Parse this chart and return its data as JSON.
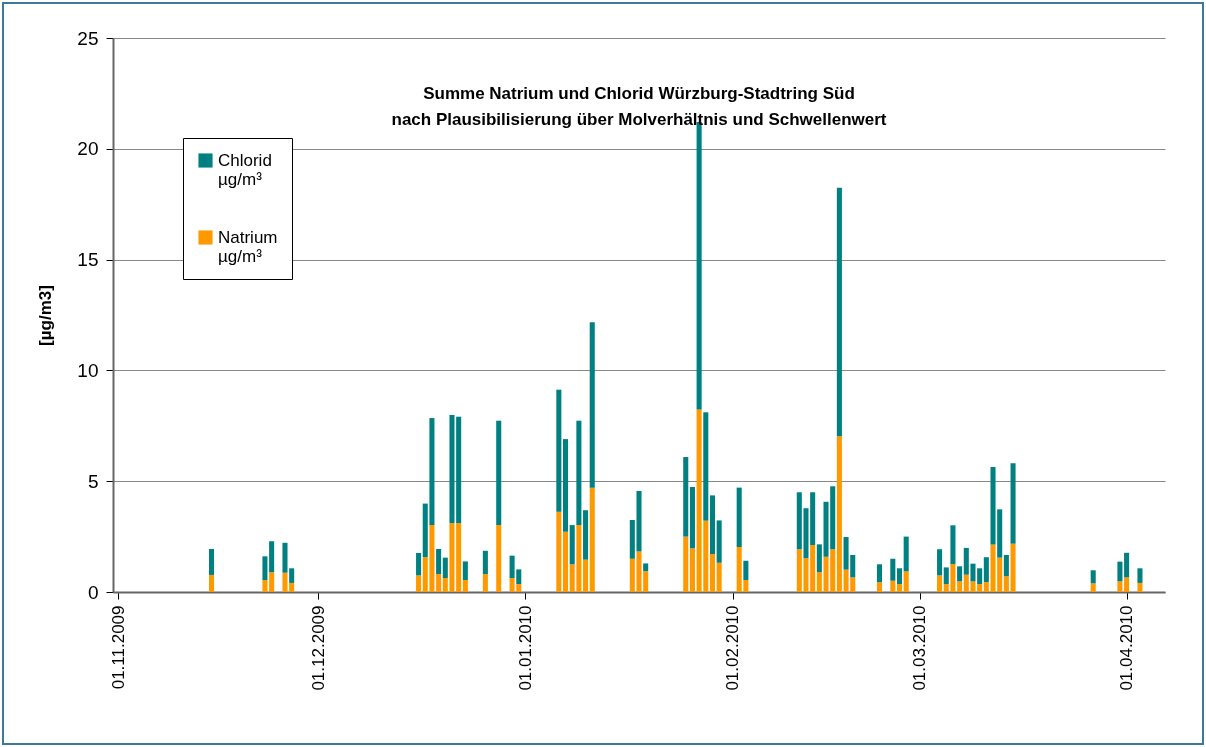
{
  "chart_data": {
    "type": "bar",
    "stacked": true,
    "title": "Summe Natrium und Chlorid Würzburg-Stadtring Süd\nnach Plausibilisierung über Molverhältnis und Schwellenwert",
    "ylabel": "[µg/m3]",
    "x": [
      "2009-11-15",
      "2009-11-23",
      "2009-11-24",
      "2009-11-26",
      "2009-11-27",
      "2009-12-16",
      "2009-12-17",
      "2009-12-18",
      "2009-12-19",
      "2009-12-20",
      "2009-12-21",
      "2009-12-22",
      "2009-12-23",
      "2009-12-26",
      "2009-12-28",
      "2009-12-30",
      "2009-12-31",
      "2010-01-06",
      "2010-01-07",
      "2010-01-08",
      "2010-01-09",
      "2010-01-10",
      "2010-01-11",
      "2010-01-17",
      "2010-01-18",
      "2010-01-19",
      "2010-01-25",
      "2010-01-26",
      "2010-01-27",
      "2010-01-28",
      "2010-01-29",
      "2010-01-30",
      "2010-02-02",
      "2010-02-03",
      "2010-02-11",
      "2010-02-12",
      "2010-02-13",
      "2010-02-14",
      "2010-02-15",
      "2010-02-16",
      "2010-02-17",
      "2010-02-18",
      "2010-02-19",
      "2010-02-23",
      "2010-02-25",
      "2010-02-26",
      "2010-02-27",
      "2010-03-04",
      "2010-03-05",
      "2010-03-06",
      "2010-03-07",
      "2010-03-08",
      "2010-03-09",
      "2010-03-10",
      "2010-03-11",
      "2010-03-12",
      "2010-03-13",
      "2010-03-14",
      "2010-03-15",
      "2010-03-27",
      "2010-03-31",
      "2010-04-01",
      "2010-04-03"
    ],
    "series": [
      {
        "name": "Natrium µg/m³",
        "color": "#ff9900",
        "values": [
          0.77,
          0.54,
          0.89,
          0.87,
          0.41,
          0.75,
          1.57,
          3.02,
          0.81,
          0.63,
          3.11,
          3.11,
          0.54,
          0.81,
          3.02,
          0.63,
          0.36,
          3.62,
          2.72,
          1.25,
          3.02,
          1.46,
          4.71,
          1.5,
          1.83,
          0.94,
          2.5,
          1.97,
          8.23,
          3.22,
          1.71,
          1.32,
          2.03,
          0.54,
          1.93,
          1.53,
          2.12,
          0.89,
          1.59,
          1.93,
          7.03,
          1.01,
          0.66,
          0.44,
          0.51,
          0.36,
          0.93,
          0.75,
          0.36,
          1.26,
          0.48,
          0.78,
          0.48,
          0.36,
          0.45,
          2.14,
          1.55,
          0.71,
          2.18,
          0.39,
          0.48,
          0.66,
          0.41
        ]
      },
      {
        "name": "Chlorid µg/m³",
        "color": "#008080",
        "values": [
          1.17,
          1.07,
          1.4,
          1.35,
          0.66,
          1.01,
          2.42,
          4.83,
          1.13,
          0.92,
          4.88,
          4.8,
          0.84,
          1.05,
          4.71,
          1.01,
          0.66,
          5.51,
          4.18,
          1.77,
          4.71,
          2.23,
          7.46,
          1.75,
          2.73,
          0.35,
          3.59,
          2.77,
          12.98,
          4.89,
          2.65,
          1.91,
          2.68,
          0.87,
          2.57,
          2.25,
          2.38,
          1.26,
          2.48,
          2.84,
          11.21,
          1.47,
          1.01,
          0.81,
          0.99,
          0.71,
          1.57,
          1.18,
          0.75,
          1.75,
          0.68,
          1.21,
          0.8,
          0.71,
          1.12,
          3.5,
          2.18,
          0.96,
          3.63,
          0.59,
          0.89,
          1.11,
          0.66
        ]
      }
    ],
    "xlim": [
      "2009-11-01",
      "2010-04-06"
    ],
    "xticks": [
      {
        "value": "2009-11-01",
        "label": "01.11.2009"
      },
      {
        "value": "2009-12-01",
        "label": "01.12.2009"
      },
      {
        "value": "2010-01-01",
        "label": "01.01.2010"
      },
      {
        "value": "2010-02-01",
        "label": "01.02.2010"
      },
      {
        "value": "2010-03-01",
        "label": "01.03.2010"
      },
      {
        "value": "2010-04-01",
        "label": "01.04.2010"
      }
    ],
    "ylim": [
      0,
      25
    ],
    "yticks": [
      0,
      5,
      10,
      15,
      20,
      25
    ],
    "grid": "y",
    "legend": "top left"
  }
}
